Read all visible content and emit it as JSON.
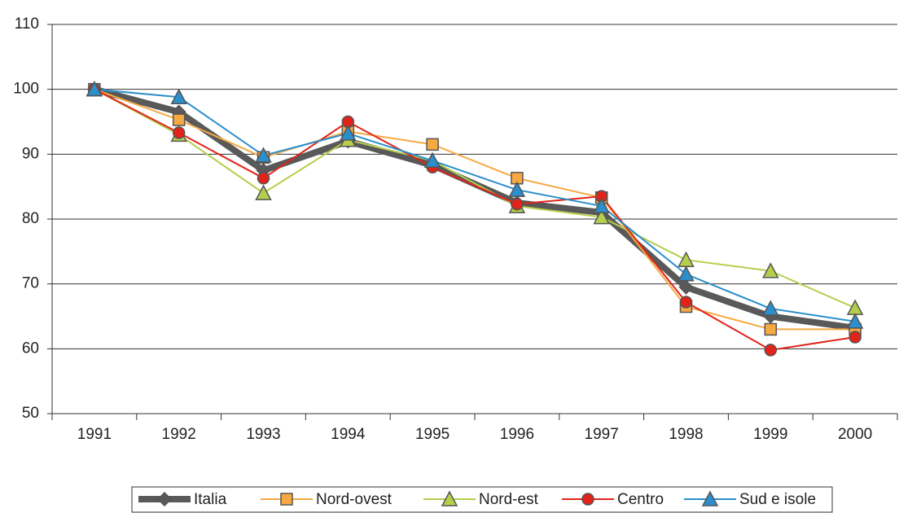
{
  "chart_data": {
    "type": "line",
    "categories": [
      "1991",
      "1992",
      "1993",
      "1994",
      "1995",
      "1996",
      "1997",
      "1998",
      "1999",
      "2000"
    ],
    "series": [
      {
        "name": "Italia",
        "color": "#595959",
        "marker": "diamond",
        "values": [
          100,
          96.5,
          87.5,
          92,
          88.3,
          82.5,
          81,
          69.5,
          65,
          63.2
        ]
      },
      {
        "name": "Nord-ovest",
        "color": "#f7a941",
        "marker": "square",
        "values": [
          100,
          95.3,
          89.5,
          93.5,
          91.5,
          86.3,
          83.3,
          66.5,
          63,
          63
        ]
      },
      {
        "name": "Nord-est",
        "color": "#b5cf4c",
        "marker": "triangle",
        "values": [
          100,
          93,
          84,
          92.2,
          89,
          82,
          80.3,
          73.7,
          72,
          66.3
        ]
      },
      {
        "name": "Centro",
        "color": "#e2231a",
        "marker": "circle",
        "values": [
          100,
          93.3,
          86.3,
          95,
          88,
          82.3,
          83.5,
          67.2,
          59.8,
          61.8
        ]
      },
      {
        "name": "Sud e isole",
        "color": "#2a8fcc",
        "marker": "triangle",
        "values": [
          100,
          98.8,
          89.8,
          93.2,
          89,
          84.5,
          82,
          71.5,
          66.2,
          64.2
        ]
      }
    ],
    "ylim": [
      50,
      110
    ],
    "yticks": [
      50,
      60,
      70,
      80,
      90,
      100,
      110
    ],
    "grid": true,
    "legend": "bottom"
  }
}
